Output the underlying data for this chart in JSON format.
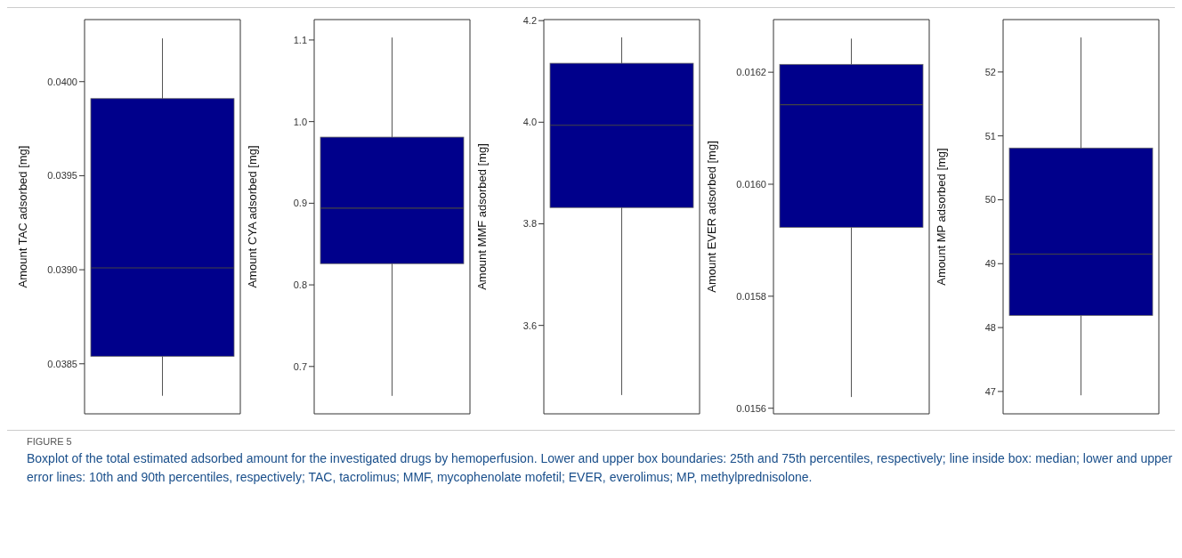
{
  "chart_data": [
    {
      "type": "box",
      "title": "FIGURE 5",
      "annotations": [
        "Boxplot of the total estimated adsorbed amount for the investigated drugs by hemoperfusion. Lower and upper box boundaries: 25th and 75th percentiles, respectively; line inside box: median; lower and upper error lines: 10th and 90th percentiles, respectively; TAC, tacrolimus; MMF, mycophenolate mofetil; EVER, everolimus; MP, methylprednisolone."
      ],
      "ylabel": "Amount TAC adsorbed [mg]",
      "categories": [
        null
      ],
      "color": "#00008b",
      "boxes": [
        {
          "low": 0.03833,
          "q1": 0.03854,
          "median": 0.03901,
          "q3": 0.03991,
          "high": 0.04023
        }
      ],
      "ylim": [
        0.038234,
        0.04033
      ],
      "yticks": [
        {
          "value": 0.0385,
          "label": "0.0385"
        },
        {
          "value": 0.039,
          "label": "0.0390"
        },
        {
          "value": 0.0395,
          "label": "0.0395"
        },
        {
          "value": 0.04,
          "label": "0.0400"
        }
      ]
    },
    {
      "type": "box",
      "ylabel": "Amount CYA adsorbed [mg]",
      "categories": [
        null
      ],
      "color": "#00008b",
      "boxes": [
        {
          "low": 0.664,
          "q1": 0.826,
          "median": 0.894,
          "q3": 0.981,
          "high": 1.103
        }
      ],
      "ylim": [
        0.642,
        1.125
      ],
      "yticks": [
        0.7,
        0.8,
        0.9,
        {
          "value": 1.0,
          "label": "1.0"
        },
        1.1
      ]
    },
    {
      "type": "box",
      "ylabel": "Amount MMF adsorbed [mg]",
      "categories": [
        null
      ],
      "color": "#00008b",
      "boxes": [
        {
          "low": 3.463,
          "q1": 3.832,
          "median": 3.994,
          "q3": 4.116,
          "high": 4.167
        }
      ],
      "ylim": [
        3.426,
        4.202
      ],
      "yticks": [
        3.6,
        3.8,
        {
          "value": 4.0,
          "label": "4.0"
        },
        4.2
      ]
    },
    {
      "type": "box",
      "ylabel": "Amount EVER adsorbed [mg]",
      "categories": [
        null
      ],
      "color": "#00008b",
      "boxes": [
        {
          "low": 0.01562,
          "q1": 0.015923,
          "median": 0.016142,
          "q3": 0.016214,
          "high": 0.01626
        }
      ],
      "ylim": [
        0.01559,
        0.016294
      ],
      "yticks": [
        0.0156,
        0.0158,
        {
          "value": 0.016,
          "label": "0.0160"
        },
        0.0162
      ]
    },
    {
      "type": "box",
      "ylabel": "Amount MP adsorbed [mg]",
      "categories": [
        null
      ],
      "color": "#00008b",
      "boxes": [
        {
          "low": 46.94,
          "q1": 48.19,
          "median": 49.15,
          "q3": 50.81,
          "high": 52.54
        }
      ],
      "ylim": [
        46.65,
        52.82
      ],
      "yticks": [
        47,
        48,
        49,
        50,
        51,
        52
      ]
    }
  ]
}
